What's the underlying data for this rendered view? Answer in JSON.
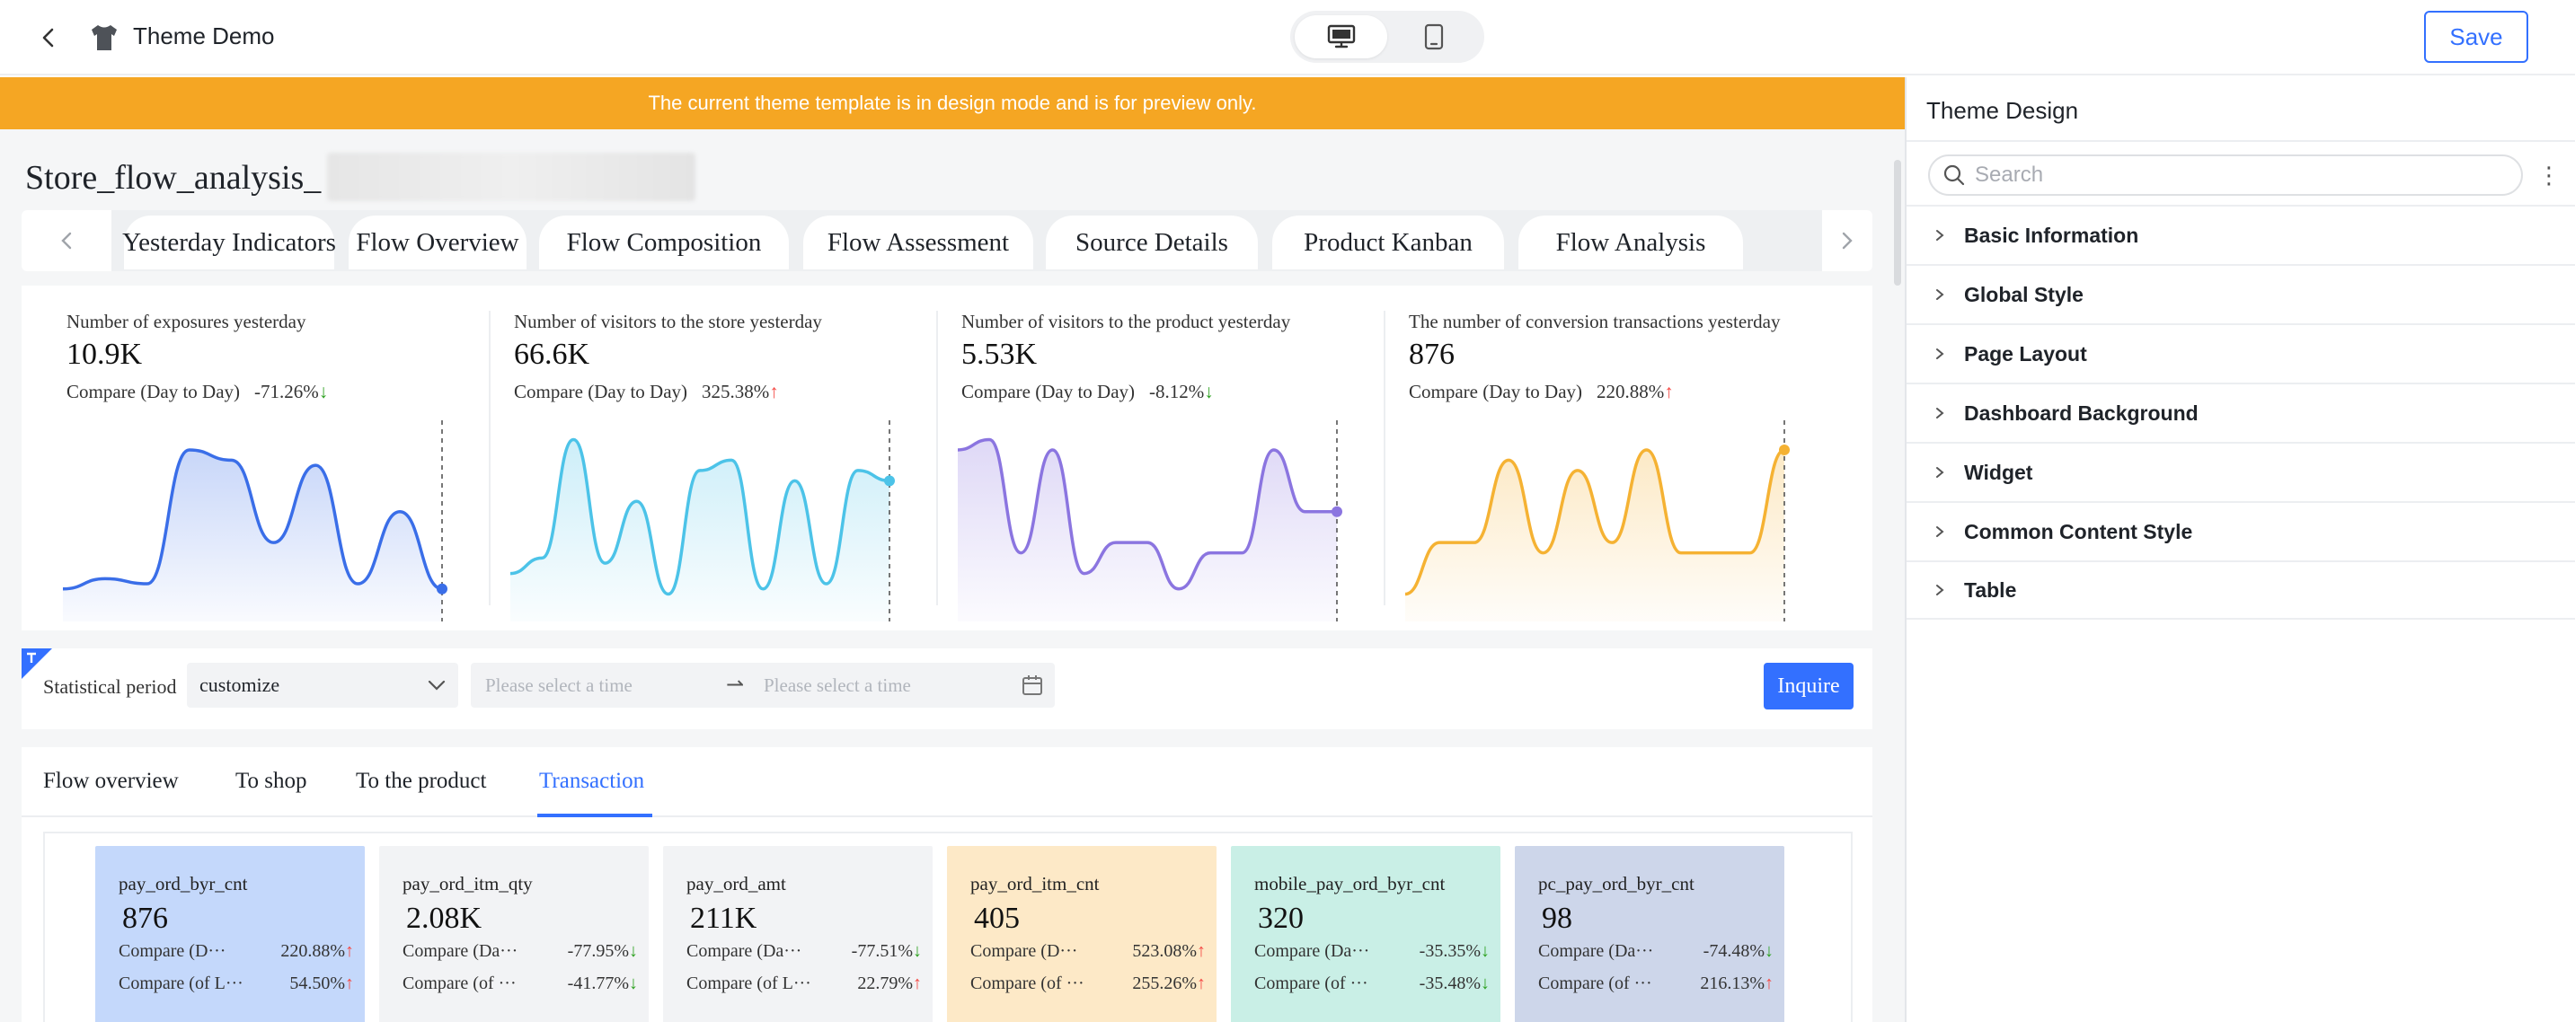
{
  "header": {
    "app_title": "Theme Demo",
    "save_label": "Save",
    "device_modes": [
      "desktop",
      "mobile"
    ],
    "active_device": "desktop"
  },
  "banner": {
    "text": "The current theme template is in design mode and is for preview only.",
    "color": "#f5a623"
  },
  "dashboard": {
    "title": "Store_flow_analysis_",
    "tabs": [
      "Yesterday Indicators",
      "Flow Overview",
      "Flow Composition",
      "Flow Assessment",
      "Source Details",
      "Product Kanban",
      "Flow Analysis"
    ],
    "kpis": [
      {
        "label": "Number of exposures yesterday",
        "value": "10.9K",
        "compare_label": "Compare (Day to Day)",
        "compare_value": "-71.26%",
        "trend": "down",
        "color": "#3a6ee8",
        "chart_data": {
          "type": "area",
          "x": [
            1,
            2,
            3,
            4,
            5,
            6,
            7,
            8,
            9,
            10
          ],
          "values": [
            3,
            5,
            4,
            30,
            28,
            12,
            27,
            4,
            18,
            3
          ]
        }
      },
      {
        "label": "Number of visitors to the store yesterday",
        "value": "66.6K",
        "compare_label": "Compare (Day to Day)",
        "compare_value": "325.38%",
        "trend": "up",
        "color": "#4cc3e8",
        "chart_data": {
          "type": "area",
          "x": [
            1,
            2,
            3,
            4,
            5,
            6,
            7,
            8,
            9,
            10,
            11,
            12,
            13
          ],
          "values": [
            6,
            9,
            32,
            8,
            20,
            2,
            26,
            28,
            3,
            24,
            4,
            26,
            24
          ]
        }
      },
      {
        "label": "Number of visitors to the product yesterday",
        "value": "5.53K",
        "compare_label": "Compare (Day to Day)",
        "compare_value": "-8.12%",
        "trend": "down",
        "color": "#8b75e0",
        "chart_data": {
          "type": "area",
          "x": [
            1,
            2,
            3,
            4,
            5,
            6,
            7,
            8,
            9,
            10,
            11,
            12,
            13
          ],
          "values": [
            30,
            32,
            10,
            30,
            6,
            12,
            12,
            3,
            10,
            10,
            30,
            18,
            18
          ]
        }
      },
      {
        "label": "The number of conversion transactions yesterday",
        "value": "876",
        "compare_label": "Compare (Day to Day)",
        "compare_value": "220.88%",
        "trend": "up",
        "color": "#f5b233",
        "chart_data": {
          "type": "area",
          "x": [
            1,
            2,
            3,
            4,
            5,
            6,
            7,
            8,
            9,
            10,
            11,
            12
          ],
          "values": [
            2,
            12,
            12,
            28,
            10,
            26,
            12,
            30,
            10,
            10,
            10,
            30
          ]
        }
      }
    ],
    "filter": {
      "period_label": "Statistical period",
      "period_value": "customize",
      "start_placeholder": "Please select a time",
      "end_placeholder": "Please select a time",
      "inquire_label": "Inquire"
    },
    "subtabs": [
      "Flow overview",
      "To shop",
      "To the product",
      "Transaction"
    ],
    "active_subtab": "Transaction",
    "metrics": [
      {
        "name": "pay_ord_byr_cnt",
        "value": "876",
        "row1_label": "Compare (D···",
        "row1_value": "220.88%",
        "row1_trend": "up",
        "row2_label": "Compare (of L···",
        "row2_value": "54.50%",
        "row2_trend": "up",
        "bg": "#c4d8fb"
      },
      {
        "name": "pay_ord_itm_qty",
        "value": "2.08K",
        "row1_label": "Compare (Da···",
        "row1_value": "-77.95%",
        "row1_trend": "down",
        "row2_label": "Compare (of ···",
        "row2_value": "-41.77%",
        "row2_trend": "down",
        "bg": "#f2f3f5"
      },
      {
        "name": "pay_ord_amt",
        "value": "211K",
        "row1_label": "Compare (Da···",
        "row1_value": "-77.51%",
        "row1_trend": "down",
        "row2_label": "Compare (of L···",
        "row2_value": "22.79%",
        "row2_trend": "up",
        "bg": "#f2f3f5"
      },
      {
        "name": "pay_ord_itm_cnt",
        "value": "405",
        "row1_label": "Compare (D···",
        "row1_value": "523.08%",
        "row1_trend": "up",
        "row2_label": "Compare (of ···",
        "row2_value": "255.26%",
        "row2_trend": "up",
        "bg": "#fde9c7"
      },
      {
        "name": "mobile_pay_ord_byr_cnt",
        "value": "320",
        "row1_label": "Compare (Da···",
        "row1_value": "-35.35%",
        "row1_trend": "down",
        "row2_label": "Compare (of ···",
        "row2_value": "-35.48%",
        "row2_trend": "down",
        "bg": "#c9efe6"
      },
      {
        "name": "pc_pay_ord_byr_cnt",
        "value": "98",
        "row1_label": "Compare (Da···",
        "row1_value": "-74.48%",
        "row1_trend": "down",
        "row2_label": "Compare (of ···",
        "row2_value": "216.13%",
        "row2_trend": "up",
        "bg": "#cdd6ea"
      }
    ]
  },
  "side_panel": {
    "title": "Theme Design",
    "search_placeholder": "Search",
    "more_label": "⋮",
    "items": [
      "Basic Information",
      "Global Style",
      "Page Layout",
      "Dashboard Background",
      "Widget",
      "Common Content Style",
      "Table"
    ]
  },
  "icons": {
    "trend_up": "↑",
    "trend_down": "↓",
    "range_arrow": "⇀"
  }
}
